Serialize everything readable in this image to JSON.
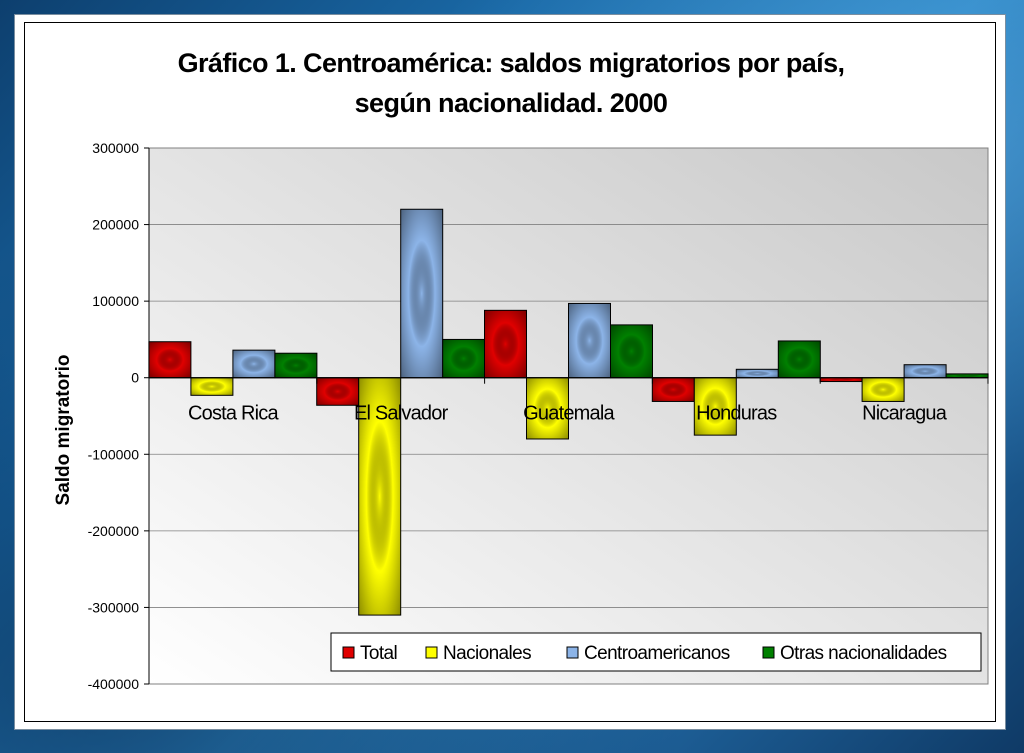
{
  "chart_data": {
    "type": "bar",
    "title_line1": "Gráfico 1. Centroamérica: saldos migratorios por país,",
    "title_line2": "según nacionalidad. 2000",
    "ylabel": "Saldo migratorio",
    "xlabel": "",
    "ylim": [
      -400000,
      300000
    ],
    "yticks": [
      "300000",
      "200000",
      "100000",
      "0",
      "-100000",
      "-200000",
      "-300000",
      "-400000"
    ],
    "ytick_values": [
      300000,
      200000,
      100000,
      0,
      -100000,
      -200000,
      -300000,
      -400000
    ],
    "grid": true,
    "legend_position": "bottom-right",
    "categories": [
      "Costa Rica",
      "El Salvador",
      "Guatemala",
      "Honduras",
      "Nicaragua"
    ],
    "series": [
      {
        "name": "Total",
        "color": "#e00000",
        "values": [
          47000,
          -36000,
          88000,
          -31000,
          -5000
        ]
      },
      {
        "name": "Nacionales",
        "color": "#ffff00",
        "values": [
          -23000,
          -310000,
          -80000,
          -75000,
          -31000
        ]
      },
      {
        "name": "Centroamericanos",
        "color": "#8cb4e8",
        "values": [
          36000,
          220000,
          97000,
          11000,
          17000
        ]
      },
      {
        "name": "Otras nacionalidades",
        "color": "#008000",
        "values": [
          32000,
          50000,
          69000,
          48000,
          5000
        ]
      }
    ]
  }
}
